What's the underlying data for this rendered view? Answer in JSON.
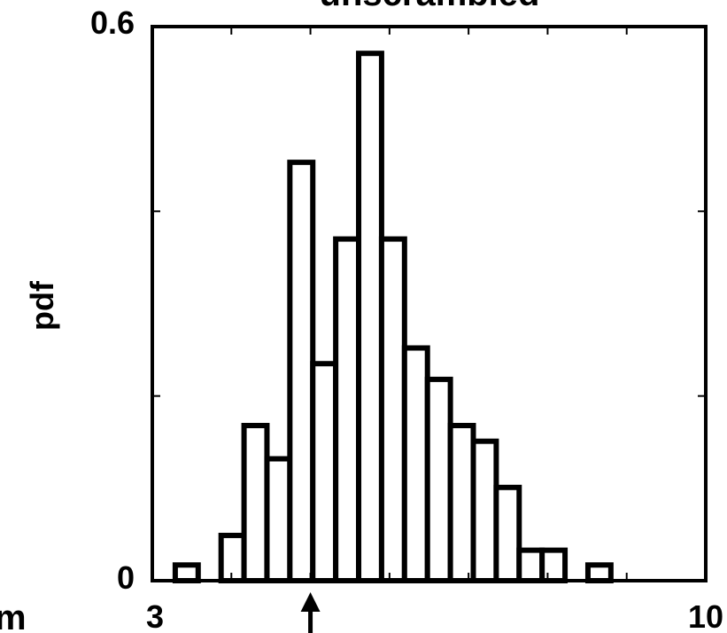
{
  "chart_data": {
    "type": "bar",
    "title": "unscrambled",
    "xlabel": "",
    "ylabel": "pdf",
    "xlim": [
      3,
      10
    ],
    "ylim": [
      0,
      0.6
    ],
    "x_tick_labels": [
      "3",
      "10"
    ],
    "y_tick_labels": [
      "0",
      "0.6"
    ],
    "bin_width": 0.29,
    "grid": false,
    "bins": [
      {
        "left": 3.29,
        "value": 0.017
      },
      {
        "left": 3.87,
        "value": 0.049
      },
      {
        "left": 4.16,
        "value": 0.168
      },
      {
        "left": 4.45,
        "value": 0.132
      },
      {
        "left": 4.74,
        "value": 0.453
      },
      {
        "left": 5.03,
        "value": 0.235
      },
      {
        "left": 5.32,
        "value": 0.37
      },
      {
        "left": 5.61,
        "value": 0.571
      },
      {
        "left": 5.9,
        "value": 0.37
      },
      {
        "left": 6.19,
        "value": 0.252
      },
      {
        "left": 6.48,
        "value": 0.218
      },
      {
        "left": 6.77,
        "value": 0.168
      },
      {
        "left": 7.06,
        "value": 0.151
      },
      {
        "left": 7.35,
        "value": 0.101
      },
      {
        "left": 7.64,
        "value": 0.033
      },
      {
        "left": 7.93,
        "value": 0.033
      },
      {
        "left": 8.51,
        "value": 0.017
      }
    ],
    "arrow_marker_x": 5.0,
    "clipped_left_label": "m"
  }
}
